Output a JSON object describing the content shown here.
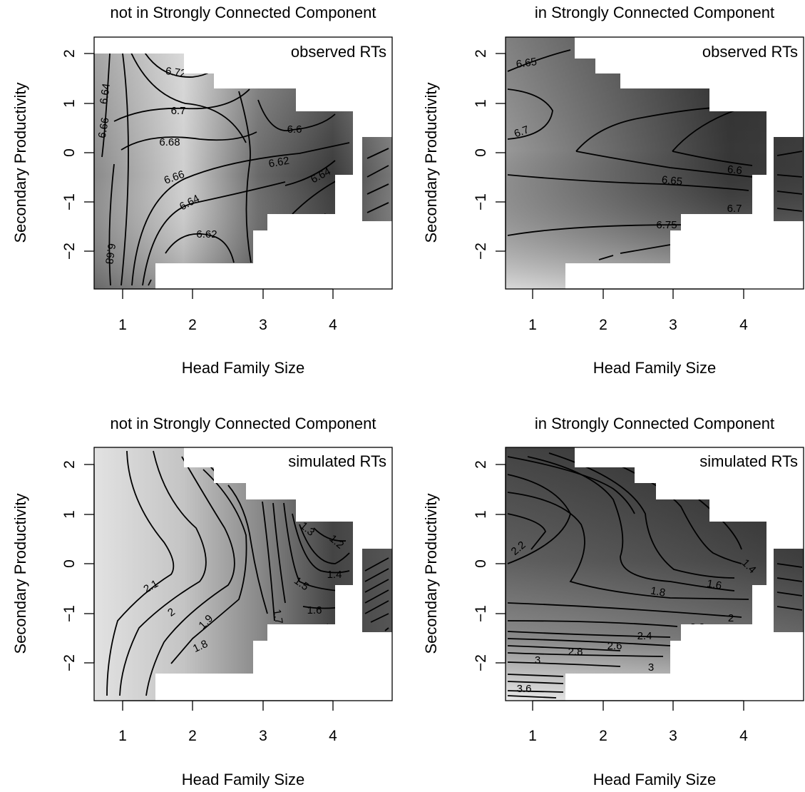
{
  "chart_data": [
    {
      "type": "heatmap",
      "title": "not in Strongly Connected Component",
      "annotation": "observed RTs",
      "xlabel": "Head Family Size",
      "ylabel": "Secondary Productivity",
      "xlim": [
        0.62,
        4.82
      ],
      "ylim": [
        -2.75,
        2.42
      ],
      "xticks": [
        "1",
        "2",
        "3",
        "4"
      ],
      "yticks": [
        "2",
        "1",
        "0",
        "−1",
        "−2"
      ],
      "contour_labels": [
        "6.64",
        "6.72",
        "6.7",
        "6.66",
        "6.68",
        "6.6",
        "6.62",
        "6.66",
        "6.64",
        "6.64",
        "6.62",
        "6.68"
      ],
      "shading": "grayscale, light = high values, dark = low values",
      "grid": false
    },
    {
      "type": "heatmap",
      "title": "in Strongly Connected Component",
      "annotation": "observed RTs",
      "xlabel": "Head Family Size",
      "ylabel": "Secondary Productivity",
      "xlim": [
        0.62,
        4.82
      ],
      "ylim": [
        -2.75,
        2.42
      ],
      "xticks": [
        "1",
        "2",
        "3",
        "4"
      ],
      "yticks": [
        "2",
        "1",
        "0",
        "−1",
        "−2"
      ],
      "contour_labels": [
        "6.65",
        "6.7",
        "6.6",
        "6.65",
        "6.7",
        "6.75"
      ],
      "shading": "grayscale, light = high values, dark = low values",
      "grid": false
    },
    {
      "type": "heatmap",
      "title": "not in Strongly Connected Component",
      "annotation": "simulated RTs",
      "xlabel": "Head Family Size",
      "ylabel": "Secondary Productivity",
      "xlim": [
        0.62,
        4.82
      ],
      "ylim": [
        -2.75,
        2.42
      ],
      "xticks": [
        "1",
        "2",
        "3",
        "4"
      ],
      "yticks": [
        "2",
        "1",
        "0",
        "−1",
        "−2"
      ],
      "contour_labels": [
        "2.1",
        "2",
        "1.9",
        "1.8",
        "1.7",
        "1.5",
        "1.6",
        "1.4",
        "1.3",
        "1.2"
      ],
      "shading": "grayscale, light = high values, dark = low values",
      "grid": false
    },
    {
      "type": "heatmap",
      "title": "in Strongly Connected Component",
      "annotation": "simulated RTs",
      "xlabel": "Head Family Size",
      "ylabel": "Secondary Productivity",
      "xlim": [
        0.62,
        4.82
      ],
      "ylim": [
        -2.75,
        2.42
      ],
      "xticks": [
        "1",
        "2",
        "3",
        "4"
      ],
      "yticks": [
        "2",
        "1",
        "0",
        "−1",
        "−2"
      ],
      "contour_labels": [
        "2.2",
        "1.8",
        "1.6",
        "1.4",
        "2",
        "2.2",
        "2.4",
        "2.6",
        "2.8",
        "3",
        "3",
        "3.6"
      ],
      "shading": "grayscale, light = high values, dark = low values",
      "grid": false
    }
  ]
}
